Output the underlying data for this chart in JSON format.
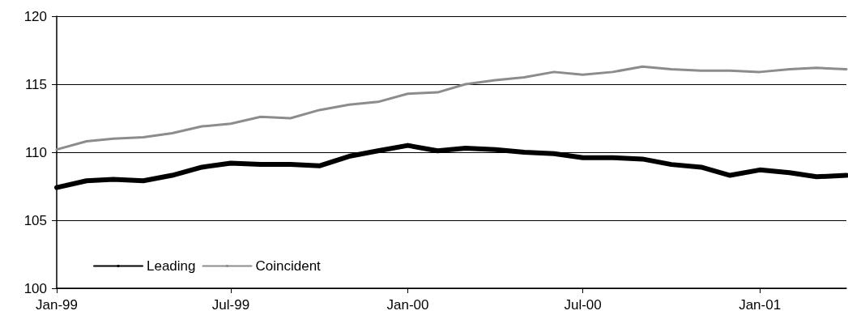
{
  "chart_data": {
    "type": "line",
    "x": [
      "1999-01",
      "1999-02",
      "1999-03",
      "1999-04",
      "1999-05",
      "1999-06",
      "1999-07",
      "1999-08",
      "1999-09",
      "1999-10",
      "1999-11",
      "1999-12",
      "2000-01",
      "2000-02",
      "2000-03",
      "2000-04",
      "2000-05",
      "2000-06",
      "2000-07",
      "2000-08",
      "2000-09",
      "2000-10",
      "2000-11",
      "2000-12",
      "2001-01",
      "2001-02",
      "2001-03",
      "2001-04"
    ],
    "series": [
      {
        "name": "Leading",
        "color": "#000000",
        "values": [
          107.4,
          107.9,
          108.0,
          107.9,
          108.3,
          108.9,
          109.2,
          109.1,
          109.1,
          109.0,
          109.7,
          110.1,
          110.5,
          110.1,
          110.3,
          110.2,
          110.0,
          109.9,
          109.6,
          109.6,
          109.5,
          109.1,
          108.9,
          108.3,
          108.7,
          108.5,
          108.2,
          108.3
        ]
      },
      {
        "name": "Coincident",
        "color": "#8c8c8c",
        "values": [
          110.2,
          110.8,
          111.0,
          111.1,
          111.4,
          111.9,
          112.1,
          112.6,
          112.5,
          113.1,
          113.5,
          113.7,
          114.3,
          114.4,
          115.0,
          115.3,
          115.5,
          115.9,
          115.7,
          115.9,
          116.3,
          116.1,
          116.0,
          116.0,
          115.9,
          116.1,
          116.2,
          116.1
        ]
      }
    ],
    "xlim": [
      "1999-01",
      "2001-04"
    ],
    "xticks": [
      {
        "value": "1999-01",
        "label": "Jan-99"
      },
      {
        "value": "1999-07",
        "label": "Jul-99"
      },
      {
        "value": "2000-01",
        "label": "Jan-00"
      },
      {
        "value": "2000-07",
        "label": "Jul-00"
      },
      {
        "value": "2001-01",
        "label": "Jan-01"
      }
    ],
    "ylim": [
      100,
      120
    ],
    "yticks": [
      100,
      105,
      110,
      115,
      120
    ],
    "grid": "y",
    "legend": "bottom left",
    "marker": "none",
    "line_style": "solid"
  }
}
